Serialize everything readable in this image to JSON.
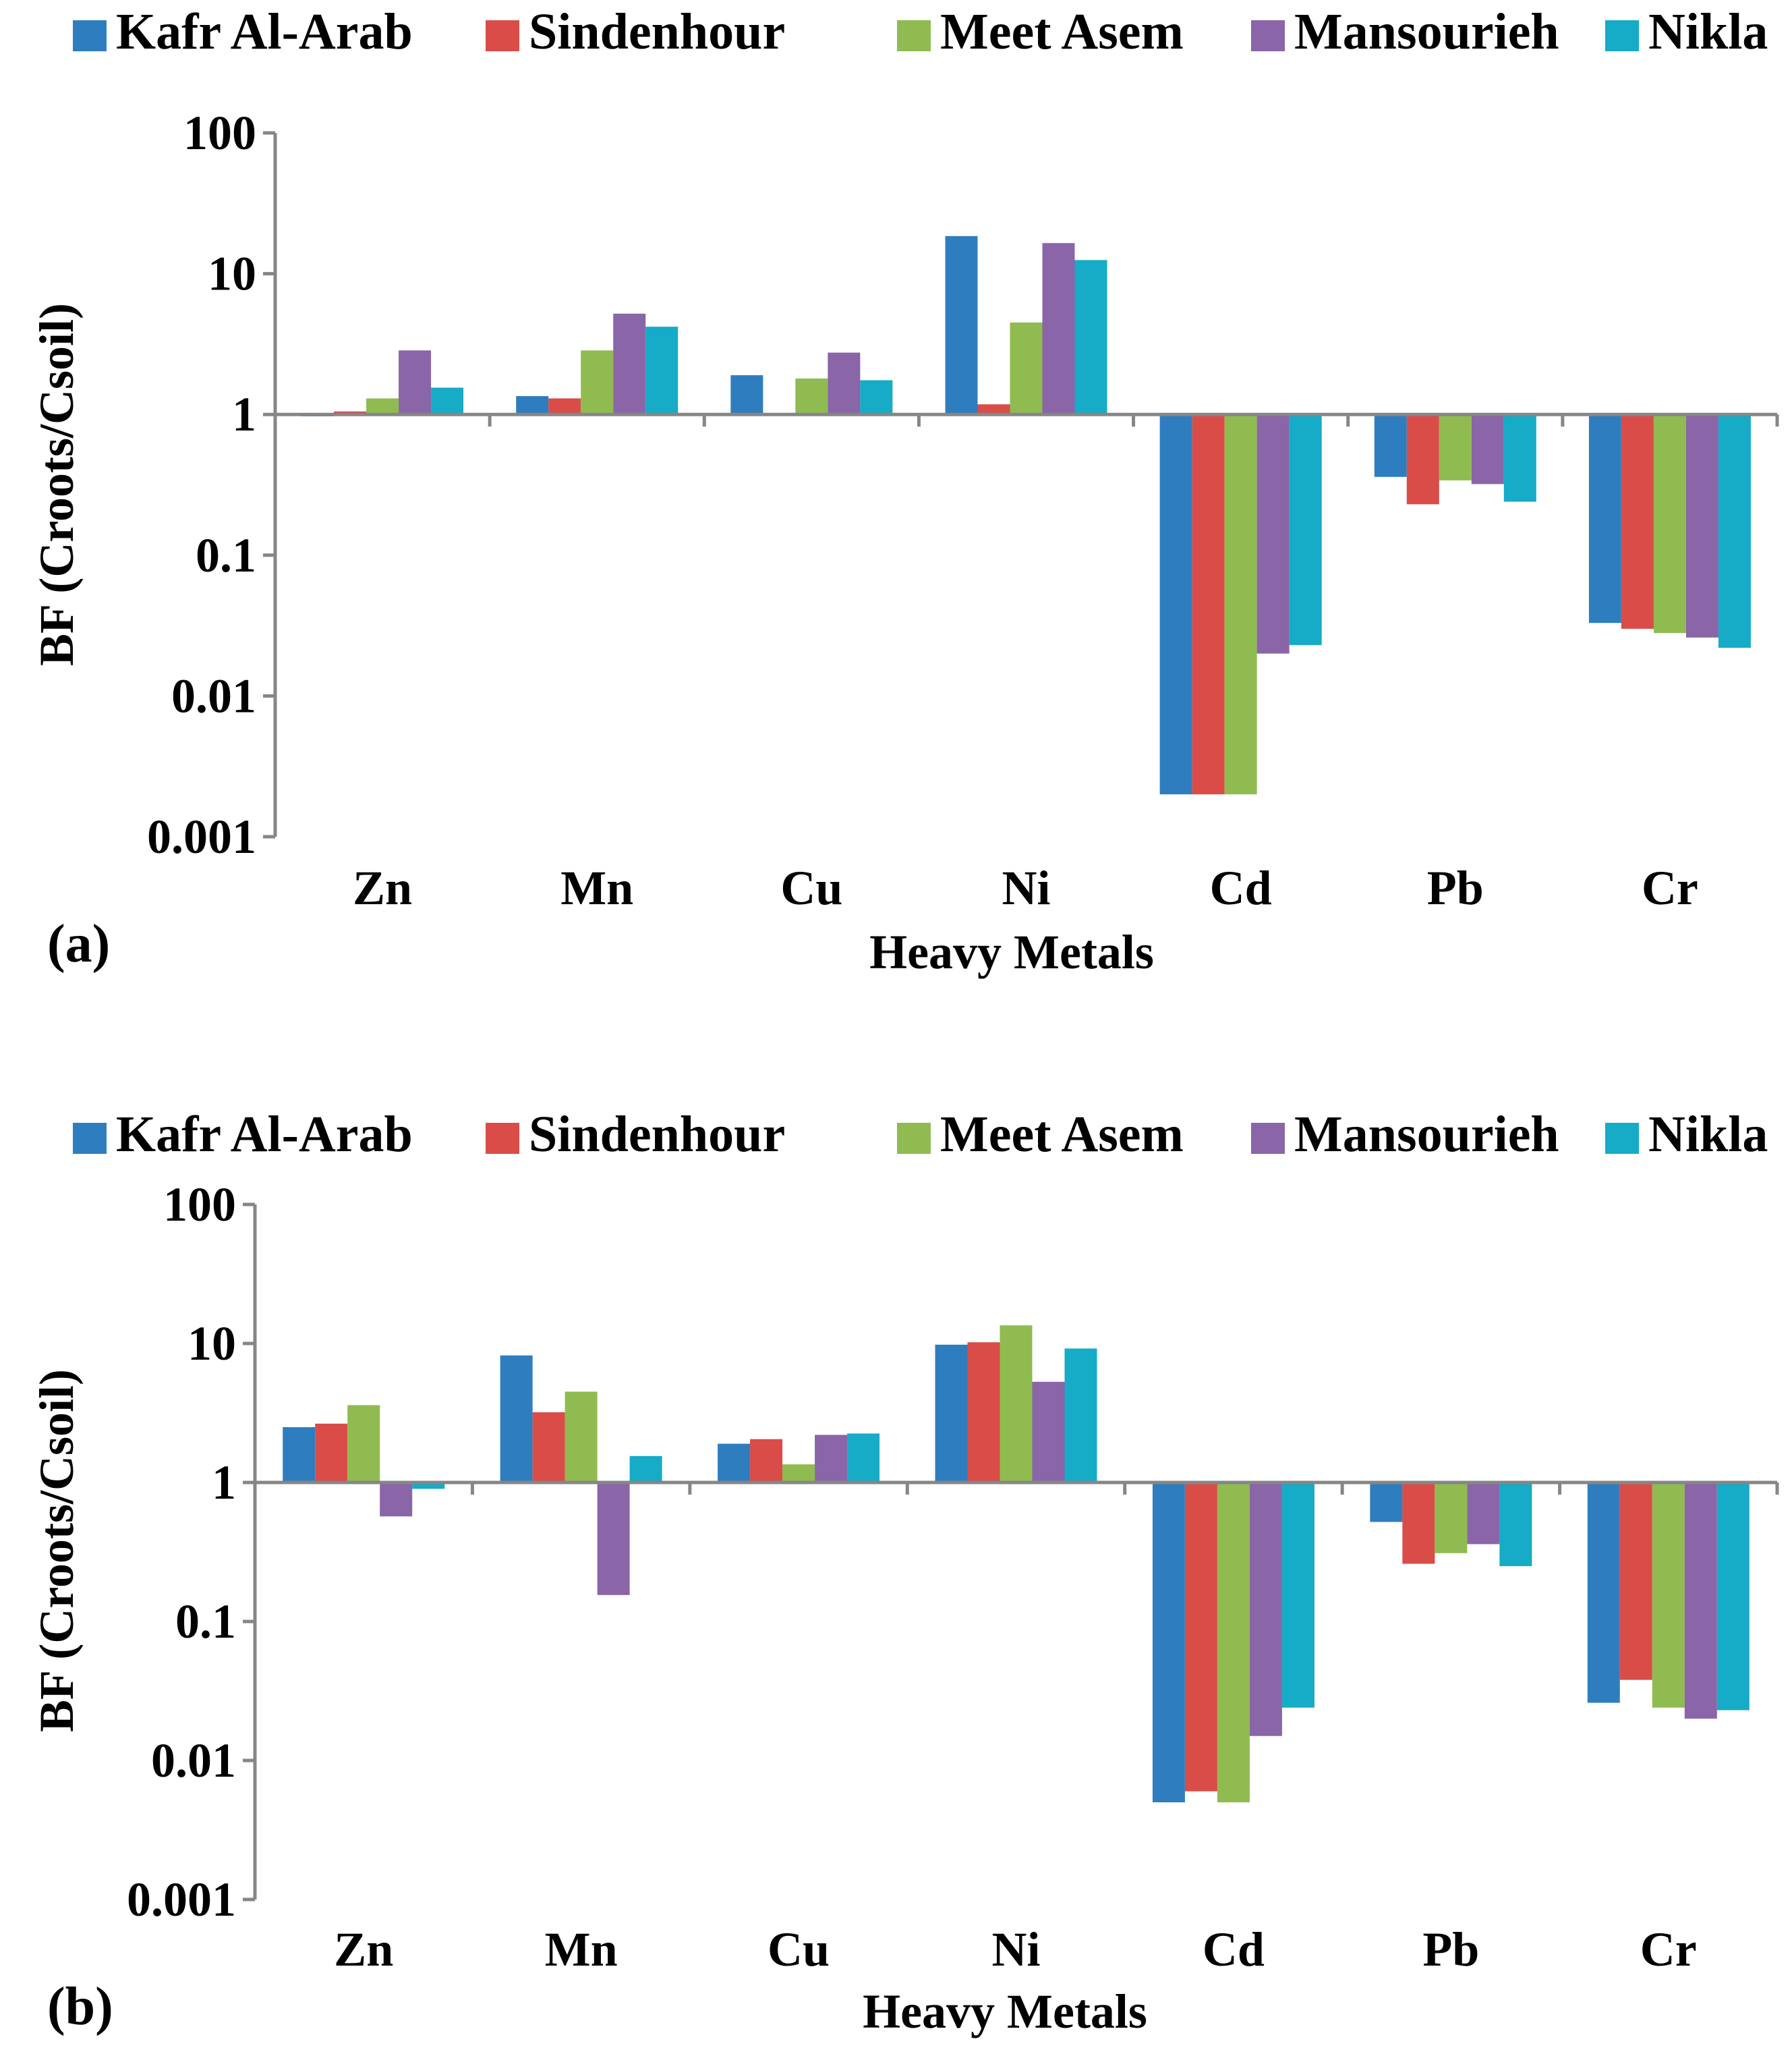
{
  "colors": {
    "Kafr Al-Arab": "#2e7ebf",
    "Sindenhour": "#d94c48",
    "Meet Asem": "#8fbb50",
    "Mansourieh": "#8a65a8",
    "Nikla": "#16abc6"
  },
  "chart_data": [
    {
      "type": "bar",
      "panel_label": "(a)",
      "xlabel": "Heavy Metals",
      "ylabel": "BF (Croots/Csoil)",
      "yscale": "log",
      "ylim": [
        0.001,
        100
      ],
      "yticks": [
        "100",
        "10",
        "1",
        "0.1",
        "0.01",
        "0.001"
      ],
      "categories": [
        "Zn",
        "Mn",
        "Cu",
        "Ni",
        "Cd",
        "Pb",
        "Cr"
      ],
      "legend_position": "top",
      "series": [
        {
          "name": "Kafr Al-Arab",
          "values": [
            0.97,
            1.35,
            1.9,
            18.5,
            0.002,
            0.36,
            0.033
          ]
        },
        {
          "name": "Sindenhour",
          "values": [
            1.05,
            1.3,
            1.0,
            1.18,
            0.002,
            0.23,
            0.03
          ]
        },
        {
          "name": "Meet Asem",
          "values": [
            1.3,
            2.85,
            1.8,
            4.5,
            0.002,
            0.34,
            0.028
          ]
        },
        {
          "name": "Mansourieh",
          "values": [
            2.85,
            5.2,
            2.75,
            16.5,
            0.02,
            0.32,
            0.026
          ]
        },
        {
          "name": "Nikla",
          "values": [
            1.55,
            4.2,
            1.75,
            12.5,
            0.023,
            0.24,
            0.022
          ]
        }
      ]
    },
    {
      "type": "bar",
      "panel_label": "(b)",
      "xlabel": "Heavy Metals",
      "ylabel": "BF (Croots/Csoil)",
      "yscale": "log",
      "ylim": [
        0.001,
        100
      ],
      "yticks": [
        "100",
        "10",
        "1",
        "0.1",
        "0.01",
        "0.001"
      ],
      "categories": [
        "Zn",
        "Mn",
        "Cu",
        "Ni",
        "Cd",
        "Pb",
        "Cr"
      ],
      "legend_position": "top",
      "series": [
        {
          "name": "Kafr Al-Arab",
          "values": [
            2.5,
            8.2,
            1.9,
            9.8,
            0.005,
            0.52,
            0.026
          ]
        },
        {
          "name": "Sindenhour",
          "values": [
            2.65,
            3.2,
            2.05,
            10.2,
            0.006,
            0.26,
            0.038
          ]
        },
        {
          "name": "Meet Asem",
          "values": [
            3.6,
            4.5,
            1.35,
            13.5,
            0.005,
            0.31,
            0.024
          ]
        },
        {
          "name": "Mansourieh",
          "values": [
            0.57,
            0.155,
            2.2,
            5.3,
            0.015,
            0.36,
            0.02
          ]
        },
        {
          "name": "Nikla",
          "values": [
            0.9,
            1.55,
            2.25,
            9.2,
            0.024,
            0.25,
            0.023
          ]
        }
      ]
    }
  ]
}
